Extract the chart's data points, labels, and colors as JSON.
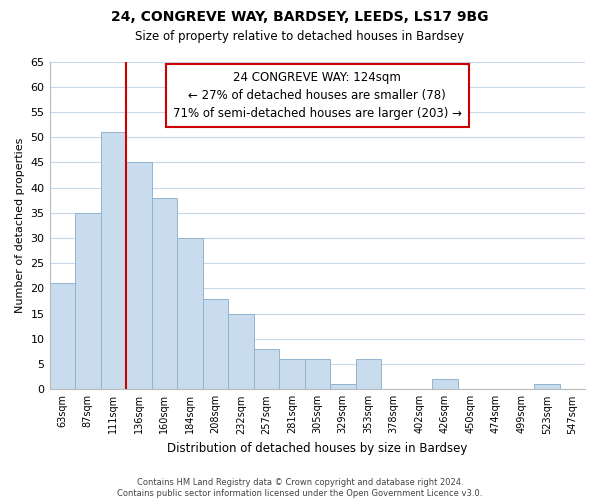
{
  "title": "24, CONGREVE WAY, BARDSEY, LEEDS, LS17 9BG",
  "subtitle": "Size of property relative to detached houses in Bardsey",
  "xlabel": "Distribution of detached houses by size in Bardsey",
  "ylabel": "Number of detached properties",
  "bar_labels": [
    "63sqm",
    "87sqm",
    "111sqm",
    "136sqm",
    "160sqm",
    "184sqm",
    "208sqm",
    "232sqm",
    "257sqm",
    "281sqm",
    "305sqm",
    "329sqm",
    "353sqm",
    "378sqm",
    "402sqm",
    "426sqm",
    "450sqm",
    "474sqm",
    "499sqm",
    "523sqm",
    "547sqm"
  ],
  "bar_values": [
    21,
    35,
    51,
    45,
    38,
    30,
    18,
    15,
    8,
    6,
    6,
    1,
    6,
    0,
    0,
    2,
    0,
    0,
    0,
    1,
    0
  ],
  "bar_color": "#c8dced",
  "bar_edge_color": "#91b4d0",
  "annotation_title": "24 CONGREVE WAY: 124sqm",
  "annotation_line1": "← 27% of detached houses are smaller (78)",
  "annotation_line2": "71% of semi-detached houses are larger (203) →",
  "annotation_box_color": "#ffffff",
  "annotation_box_edge": "#cc0000",
  "vline_color": "#cc0000",
  "ylim": [
    0,
    65
  ],
  "yticks": [
    0,
    5,
    10,
    15,
    20,
    25,
    30,
    35,
    40,
    45,
    50,
    55,
    60,
    65
  ],
  "grid_color": "#c8d8ea",
  "footnote1": "Contains HM Land Registry data © Crown copyright and database right 2024.",
  "footnote2": "Contains public sector information licensed under the Open Government Licence v3.0."
}
